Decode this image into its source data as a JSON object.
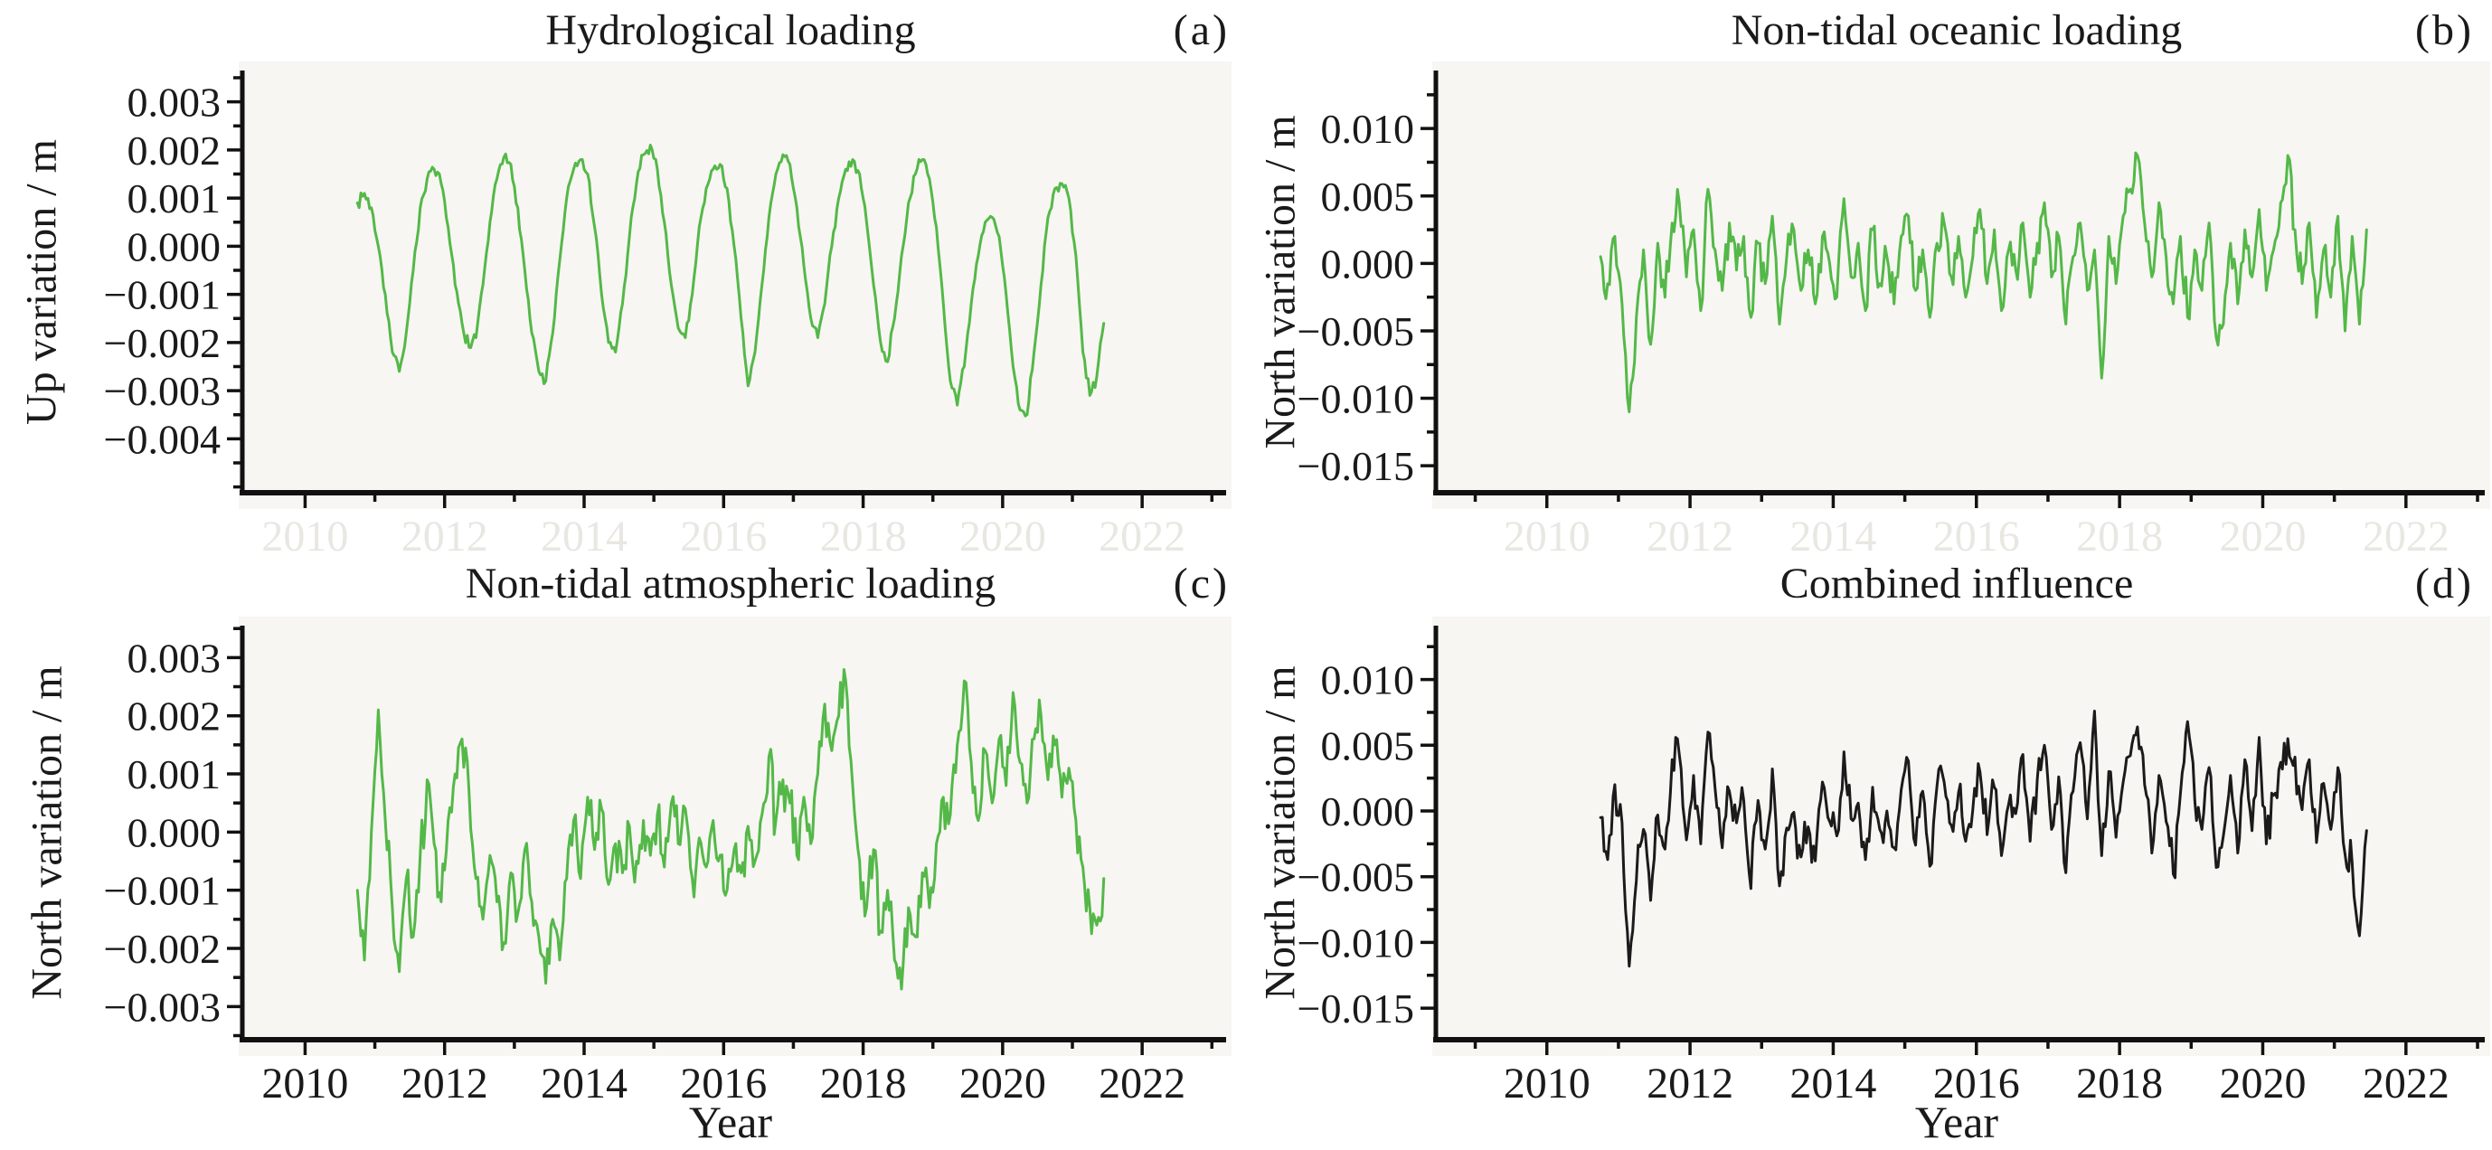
{
  "style": {
    "page_bg": "#ffffff",
    "plot_bg": "#f7f6f2",
    "text_color": "#1a1a1a",
    "axis_color": "#111111",
    "ghost_label_color": "#e9e7e2",
    "green": "#54b848",
    "black_line": "#1b1b1b"
  },
  "chart_data": [
    {
      "id": "a",
      "type": "line",
      "title": "Hydrological loading",
      "panel_label": "(a)",
      "ylabel": "Up variation / m",
      "xlabel": "",
      "line_color": "#54b848",
      "xlim": [
        2009.1,
        2023.1
      ],
      "ylim": [
        -0.00512,
        0.00365
      ],
      "xticks": {
        "values": [
          2010,
          2012,
          2014,
          2016,
          2018,
          2020,
          2022
        ],
        "labels": [
          "2010",
          "2012",
          "2014",
          "2016",
          "2018",
          "2020",
          "2022"
        ],
        "minor": [
          2011,
          2013,
          2015,
          2017,
          2019,
          2021,
          2023
        ],
        "labels_style": "ghost"
      },
      "yticks": {
        "values": [
          0.003,
          0.002,
          0.001,
          0,
          -0.001,
          -0.002,
          -0.003,
          -0.004
        ],
        "labels": [
          "0.003",
          "0.002",
          "0.001",
          "0.000",
          "−0.001",
          "−0.002",
          "−0.003",
          "−0.004"
        ],
        "minor": [
          0.0035,
          0.0025,
          0.0015,
          0.0005,
          -0.0005,
          -0.0015,
          -0.0025,
          -0.0035,
          -0.0045,
          -0.005
        ]
      },
      "series": {
        "name": "Hydrological loading",
        "x_start": 2010.75,
        "x_step": 0.1,
        "jitter": 8e-05,
        "seed": 7,
        "values": [
          0.0009,
          0.0011,
          0.0008,
          0.0,
          -0.001,
          -0.0022,
          -0.0026,
          -0.0018,
          -0.0005,
          0.0008,
          0.0014,
          0.0016,
          0.0013,
          0.0004,
          -0.0008,
          -0.0016,
          -0.0021,
          -0.0019,
          -0.0008,
          0.0005,
          0.0014,
          0.00185,
          0.0017,
          0.0008,
          -0.0005,
          -0.0018,
          -0.0026,
          -0.0028,
          -0.0018,
          -0.0003,
          0.001,
          0.0016,
          0.0018,
          0.0015,
          0.0004,
          -0.001,
          -0.002,
          -0.0022,
          -0.0012,
          0.0002,
          0.0013,
          0.0019,
          0.0021,
          0.0016,
          0.0005,
          -0.0008,
          -0.0017,
          -0.0019,
          -0.001,
          0.0004,
          0.0012,
          0.0016,
          0.0017,
          0.0012,
          0.0,
          -0.0015,
          -0.0029,
          -0.0022,
          -0.0008,
          0.0006,
          0.0015,
          0.0019,
          0.0017,
          0.0008,
          -0.0004,
          -0.0015,
          -0.0019,
          -0.0012,
          0.0,
          0.001,
          0.0016,
          0.0018,
          0.0015,
          0.0005,
          -0.0008,
          -0.002,
          -0.0024,
          -0.0015,
          -0.0002,
          0.0009,
          0.0015,
          0.0018,
          0.0014,
          0.0004,
          -0.0012,
          -0.0028,
          -0.0033,
          -0.0025,
          -0.0012,
          -0.0002,
          0.0005,
          0.0006,
          0.0002,
          -0.001,
          -0.0025,
          -0.0034,
          -0.0035,
          -0.0022,
          -0.0008,
          0.0006,
          0.0012,
          0.0013,
          0.001,
          -0.0002,
          -0.0022,
          -0.0031,
          -0.0027,
          -0.0016
        ]
      }
    },
    {
      "id": "b",
      "type": "line",
      "title": "Non-tidal oceanic loading",
      "panel_label": "(b)",
      "ylabel": "North variation / m",
      "xlabel": "",
      "line_color": "#54b848",
      "xlim": [
        2008.45,
        2023.0
      ],
      "ylim": [
        -0.017,
        0.0143
      ],
      "xticks": {
        "values": [
          2010,
          2012,
          2014,
          2016,
          2018,
          2020,
          2022
        ],
        "labels": [
          "2010",
          "2012",
          "2014",
          "2016",
          "2018",
          "2020",
          "2022"
        ],
        "minor": [
          2009,
          2011,
          2013,
          2015,
          2017,
          2019,
          2021,
          2023
        ],
        "labels_style": "ghost"
      },
      "yticks": {
        "values": [
          0.01,
          0.005,
          0,
          -0.005,
          -0.01,
          -0.015
        ],
        "labels": [
          "0.010",
          "0.005",
          "0.000",
          "−0.005",
          "−0.010",
          "−0.015"
        ],
        "minor": [
          0.0125,
          0.0075,
          0.0025,
          -0.0025,
          -0.0075,
          -0.0125
        ]
      },
      "series": {
        "name": "Non-tidal oceanic loading",
        "x_start": 2010.75,
        "x_step": 0.1,
        "jitter": 0.00085,
        "seed": 13,
        "values": [
          0.0005,
          -0.0015,
          0.002,
          -0.003,
          -0.011,
          -0.004,
          0.001,
          -0.006,
          0.0015,
          -0.0025,
          0.003,
          0.0045,
          -0.001,
          0.0025,
          -0.0035,
          0.0055,
          0.001,
          -0.002,
          0.003,
          -0.0005,
          0.002,
          -0.004,
          0.0015,
          -0.0015,
          0.0035,
          -0.0045,
          0.0005,
          0.0025,
          -0.002,
          0.001,
          -0.003,
          0.002,
          0.0,
          -0.0025,
          0.0048,
          -0.001,
          0.0015,
          -0.0035,
          0.0025,
          -0.0015,
          0.0005,
          -0.003,
          0.002,
          0.0035,
          -0.002,
          0.001,
          -0.004,
          0.0015,
          0.003,
          -0.001,
          0.002,
          -0.0025,
          0.0005,
          0.004,
          -0.0015,
          0.0025,
          -0.0035,
          0.001,
          -0.0005,
          0.003,
          -0.0025,
          0.0015,
          0.0045,
          -0.001,
          0.002,
          -0.0045,
          0.0005,
          0.003,
          -0.002,
          0.001,
          -0.0085,
          0.002,
          -0.0015,
          0.0035,
          0.0055,
          0.008,
          0.003,
          -0.001,
          0.0045,
          0.0005,
          -0.003,
          0.002,
          -0.004,
          0.001,
          -0.002,
          0.003,
          -0.0055,
          -0.0045,
          0.0015,
          -0.003,
          0.0025,
          -0.001,
          0.004,
          -0.002,
          0.001,
          0.0045,
          0.008,
          0.0025,
          -0.0015,
          0.003,
          -0.004,
          0.001,
          -0.0025,
          0.0035,
          -0.005,
          0.002,
          -0.0045,
          0.0025
        ]
      }
    },
    {
      "id": "c",
      "type": "line",
      "title": "Non-tidal atmospheric loading",
      "panel_label": "(c)",
      "ylabel": "North variation / m",
      "xlabel": "Year",
      "line_color": "#54b848",
      "xlim": [
        2009.1,
        2023.1
      ],
      "ylim": [
        -0.00357,
        0.00355
      ],
      "xticks": {
        "values": [
          2010,
          2012,
          2014,
          2016,
          2018,
          2020,
          2022
        ],
        "labels": [
          "2010",
          "2012",
          "2014",
          "2016",
          "2018",
          "2020",
          "2022"
        ],
        "minor": [
          2011,
          2013,
          2015,
          2017,
          2019,
          2021,
          2023
        ],
        "labels_style": "normal"
      },
      "yticks": {
        "values": [
          0.003,
          0.002,
          0.001,
          0,
          -0.001,
          -0.002,
          -0.003
        ],
        "labels": [
          "0.003",
          "0.002",
          "0.001",
          "0.000",
          "−0.001",
          "−0.002",
          "−0.003"
        ],
        "minor": [
          0.0035,
          0.0025,
          0.0015,
          0.0005,
          -0.0005,
          -0.0015,
          -0.0025,
          -0.0035
        ]
      },
      "series": {
        "name": "Non-tidal atmospheric loading",
        "x_start": 2010.75,
        "x_step": 0.1,
        "jitter": 0.00028,
        "seed": 21,
        "values": [
          -0.001,
          -0.0022,
          0.0,
          0.0021,
          0.0002,
          -0.0013,
          -0.0024,
          -0.0008,
          -0.0018,
          -0.0004,
          0.0009,
          -0.0002,
          -0.0012,
          0.0002,
          0.001,
          0.0016,
          0.0007,
          -0.0008,
          -0.0015,
          -0.0004,
          -0.0012,
          -0.0019,
          -0.0007,
          -0.0014,
          -0.0003,
          -0.0012,
          -0.0018,
          -0.0026,
          -0.0015,
          -0.0022,
          -0.0008,
          0.0002,
          -0.0008,
          0.0006,
          -0.0003,
          0.0004,
          -0.0009,
          -0.0002,
          -0.0007,
          0.0001,
          -0.0005,
          0.0002,
          -0.0004,
          0.0003,
          -0.0006,
          0.0005,
          -0.0002,
          0.0004,
          -0.0008,
          -0.0001,
          -0.0006,
          0.0002,
          -0.0004,
          -0.001,
          -0.0003,
          -0.0007,
          0.0001,
          -0.0005,
          0.0003,
          0.0013,
          0.0002,
          0.0009,
          0.0005,
          -0.0004,
          0.0006,
          -0.0002,
          0.001,
          0.0022,
          0.0014,
          0.002,
          0.0026,
          0.0008,
          -0.0005,
          -0.0013,
          -0.0003,
          -0.0017,
          -0.001,
          -0.0022,
          -0.0027,
          -0.0013,
          -0.0018,
          -0.0007,
          -0.0013,
          -0.0002,
          0.0006,
          0.0003,
          0.0015,
          0.0026,
          0.0012,
          0.0002,
          0.0014,
          0.0005,
          0.0016,
          0.0008,
          0.0024,
          0.0012,
          0.0005,
          0.0016,
          0.002,
          0.0009,
          0.0015,
          0.0006,
          0.0011,
          0.0002,
          -0.0006,
          -0.0013,
          -0.0016,
          -0.0008
        ]
      }
    },
    {
      "id": "d",
      "type": "line",
      "title": "Combined influence",
      "panel_label": "(d)",
      "ylabel": "North variation / m",
      "xlabel": "Year",
      "line_color": "#1b1b1b",
      "xlim": [
        2008.45,
        2023.0
      ],
      "ylim": [
        -0.0174,
        0.0141
      ],
      "xticks": {
        "values": [
          2010,
          2012,
          2014,
          2016,
          2018,
          2020,
          2022
        ],
        "labels": [
          "2010",
          "2012",
          "2014",
          "2016",
          "2018",
          "2020",
          "2022"
        ],
        "minor": [
          2009,
          2011,
          2013,
          2015,
          2017,
          2019,
          2021,
          2023
        ],
        "labels_style": "normal"
      },
      "yticks": {
        "values": [
          0.01,
          0.005,
          0,
          -0.005,
          -0.01,
          -0.015
        ],
        "labels": [
          "0.010",
          "0.005",
          "0.000",
          "−0.005",
          "−0.010",
          "−0.015"
        ],
        "minor": [
          0.0125,
          0.0075,
          0.0025,
          -0.0025,
          -0.0075,
          -0.0125
        ]
      },
      "series": {
        "name": "Combined influence",
        "x_start": 2010.75,
        "x_step": 0.1,
        "jitter": 0.00095,
        "seed": 34,
        "values": [
          -0.0005,
          -0.0037,
          0.002,
          -0.0009,
          -0.0118,
          -0.0053,
          -0.0014,
          -0.0068,
          -0.0003,
          -0.0029,
          0.0039,
          0.0043,
          -0.0022,
          0.0027,
          -0.0025,
          0.006,
          0.0017,
          -0.0028,
          0.0015,
          -0.0009,
          0.0008,
          -0.0059,
          0.0008,
          -0.0029,
          0.0032,
          -0.0057,
          -0.0013,
          -0.0001,
          -0.0035,
          -0.0012,
          -0.0038,
          0.0022,
          -0.0008,
          -0.0019,
          0.0045,
          -0.0006,
          0.0006,
          -0.0037,
          0.0018,
          -0.0014,
          0.0,
          -0.0028,
          0.0016,
          0.0038,
          -0.0026,
          0.0015,
          -0.0042,
          0.0019,
          0.0022,
          -0.0011,
          0.0014,
          -0.0023,
          0.0001,
          0.003,
          -0.0018,
          0.0018,
          -0.0034,
          0.0005,
          -0.0002,
          0.0043,
          -0.0023,
          0.0024,
          0.005,
          -0.0014,
          0.0026,
          -0.0047,
          0.0015,
          0.0052,
          -0.0006,
          0.0076,
          -0.0034,
          0.003,
          -0.002,
          0.0022,
          0.0042,
          0.0064,
          0.002,
          -0.0032,
          0.0027,
          -0.0008,
          -0.0048,
          0.0013,
          0.0068,
          0.0008,
          -0.0014,
          0.0033,
          -0.0043,
          -0.0019,
          0.0027,
          -0.0032,
          0.0039,
          -0.0015,
          0.0056,
          -0.0025,
          0.0012,
          0.0037,
          0.0055,
          0.0041,
          0.0001,
          0.0039,
          -0.0024,
          0.0021,
          -0.0014,
          0.0033,
          -0.0033,
          -0.004,
          -0.0095,
          -0.0015
        ]
      }
    }
  ]
}
